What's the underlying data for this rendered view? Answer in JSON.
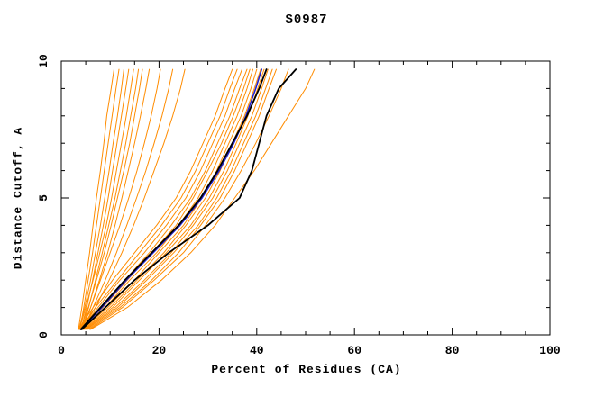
{
  "chart_data": {
    "type": "line",
    "title": "S0987",
    "xlabel": "Percent of Residues (CA)",
    "ylabel": "Distance Cutoff, A",
    "xlim": [
      0,
      100
    ],
    "ylim": [
      0,
      10
    ],
    "x_ticks": [
      0,
      20,
      40,
      60,
      80,
      100
    ],
    "x_tick_labels": [
      "0",
      "20",
      "40",
      "60",
      "80",
      "100"
    ],
    "y_ticks": [
      0,
      5,
      10
    ],
    "y_tick_labels": [
      "0",
      "5",
      "10"
    ],
    "x_minor_step": 5,
    "y_minor_step": 1,
    "grid": false,
    "legend": "none",
    "palette": {
      "orange": "#ff8c00",
      "black": "#000000",
      "blue": "#2222cc"
    },
    "y_samples": [
      0.2,
      1,
      2,
      3,
      4,
      5,
      6,
      7,
      8,
      9,
      9.7
    ],
    "series": [
      {
        "name": "m01",
        "color": "orange",
        "width": 1,
        "x": [
          3.5,
          4.2,
          5.0,
          5.8,
          6.5,
          7.2,
          8.0,
          8.7,
          9.3,
          10.2,
          10.8
        ]
      },
      {
        "name": "m02",
        "color": "orange",
        "width": 1,
        "x": [
          3.8,
          4.6,
          5.5,
          6.4,
          7.2,
          8.0,
          8.8,
          9.6,
          10.4,
          11.2,
          11.8
        ]
      },
      {
        "name": "m03",
        "color": "orange",
        "width": 1,
        "x": [
          3.6,
          4.8,
          6.0,
          7.0,
          8.0,
          8.9,
          9.8,
          10.6,
          11.5,
          12.3,
          12.8
        ]
      },
      {
        "name": "m04",
        "color": "orange",
        "width": 1,
        "x": [
          4.0,
          5.2,
          6.4,
          7.5,
          8.6,
          9.6,
          10.5,
          11.4,
          12.3,
          13.2,
          13.8
        ]
      },
      {
        "name": "m05",
        "color": "orange",
        "width": 1,
        "x": [
          3.7,
          5.0,
          6.5,
          7.9,
          9.2,
          10.3,
          11.3,
          12.3,
          13.3,
          14.2,
          14.8
        ]
      },
      {
        "name": "m06",
        "color": "orange",
        "width": 1,
        "x": [
          4.2,
          5.6,
          7.0,
          8.4,
          9.7,
          11.0,
          12.1,
          13.2,
          14.2,
          15.2,
          15.8
        ]
      },
      {
        "name": "m07",
        "color": "orange",
        "width": 1,
        "x": [
          3.9,
          5.5,
          7.2,
          8.8,
          10.2,
          11.5,
          12.8,
          14.0,
          15.0,
          16.0,
          16.6
        ]
      },
      {
        "name": "m08",
        "color": "orange",
        "width": 1,
        "x": [
          4.3,
          6.0,
          7.8,
          9.5,
          11.0,
          12.4,
          13.7,
          15.0,
          16.2,
          17.3,
          18.0
        ]
      },
      {
        "name": "m09",
        "color": "orange",
        "width": 1,
        "x": [
          4.0,
          6.0,
          8.0,
          10.0,
          12.0,
          13.8,
          15.5,
          17.0,
          18.4,
          19.6,
          20.3
        ]
      },
      {
        "name": "m10",
        "color": "orange",
        "width": 1,
        "x": [
          4.5,
          6.5,
          9.0,
          11.3,
          13.4,
          15.4,
          17.3,
          19.0,
          20.6,
          22.0,
          22.8
        ]
      },
      {
        "name": "m11",
        "color": "orange",
        "width": 1,
        "x": [
          4.2,
          7.0,
          9.8,
          12.4,
          14.8,
          17.0,
          19.0,
          21.0,
          22.8,
          24.4,
          25.3
        ]
      },
      {
        "name": "m12",
        "color": "orange",
        "width": 1,
        "x": [
          3.5,
          6.5,
          10.5,
          15.0,
          19.5,
          23.5,
          26.5,
          29.0,
          31.5,
          33.5,
          35.0
        ]
      },
      {
        "name": "m13",
        "color": "orange",
        "width": 1,
        "x": [
          3.8,
          7.0,
          11.5,
          16.0,
          20.5,
          24.5,
          27.5,
          30.0,
          32.5,
          34.5,
          36.0
        ]
      },
      {
        "name": "m14",
        "color": "orange",
        "width": 1,
        "x": [
          4.0,
          7.5,
          12.0,
          17.0,
          21.5,
          25.5,
          28.5,
          31.0,
          33.5,
          35.5,
          37.0
        ]
      },
      {
        "name": "m15",
        "color": "orange",
        "width": 1,
        "x": [
          4.2,
          8.0,
          13.0,
          18.0,
          22.5,
          26.5,
          29.5,
          32.0,
          34.5,
          36.5,
          38.0
        ]
      },
      {
        "name": "m16",
        "color": "orange",
        "width": 1,
        "x": [
          4.0,
          8.5,
          13.5,
          18.5,
          23.5,
          27.0,
          30.0,
          32.8,
          35.2,
          37.3,
          38.6
        ]
      },
      {
        "name": "m17",
        "color": "orange",
        "width": 1,
        "x": [
          4.5,
          9.0,
          14.0,
          19.5,
          24.0,
          28.0,
          31.0,
          33.5,
          36.0,
          38.0,
          39.2
        ]
      },
      {
        "name": "m18",
        "color": "orange",
        "width": 1,
        "x": [
          4.3,
          9.5,
          15.0,
          20.0,
          25.0,
          28.8,
          31.8,
          34.3,
          36.8,
          38.8,
          40.0
        ]
      },
      {
        "name": "m19",
        "color": "orange",
        "width": 1,
        "x": [
          4.6,
          10.0,
          15.5,
          21.0,
          25.5,
          29.5,
          32.5,
          35.0,
          37.5,
          39.5,
          40.8
        ]
      },
      {
        "name": "m20",
        "color": "orange",
        "width": 1,
        "x": [
          4.8,
          10.5,
          16.0,
          21.5,
          26.5,
          30.3,
          33.3,
          35.8,
          38.2,
          40.2,
          41.5
        ]
      },
      {
        "name": "m21",
        "color": "orange",
        "width": 1,
        "x": [
          5.0,
          11.0,
          17.0,
          22.5,
          27.0,
          31.0,
          34.0,
          36.5,
          39.0,
          41.0,
          42.3
        ]
      },
      {
        "name": "m22",
        "color": "orange",
        "width": 1,
        "x": [
          5.2,
          11.5,
          17.5,
          23.0,
          28.0,
          31.8,
          34.8,
          37.3,
          39.8,
          41.8,
          43.2
        ]
      },
      {
        "name": "m23",
        "color": "orange",
        "width": 1,
        "x": [
          5.5,
          12.0,
          18.5,
          24.0,
          28.5,
          32.5,
          35.5,
          38.0,
          40.5,
          42.5,
          44.0
        ]
      },
      {
        "name": "m24",
        "color": "orange",
        "width": 1,
        "x": [
          5.8,
          12.5,
          19.0,
          25.0,
          29.5,
          33.5,
          36.8,
          39.8,
          42.5,
          45.0,
          46.5
        ]
      },
      {
        "name": "m25",
        "color": "orange",
        "width": 1,
        "x": [
          6.0,
          13.5,
          20.5,
          26.5,
          31.5,
          35.5,
          39.5,
          43.0,
          46.5,
          50.0,
          51.8
        ]
      },
      {
        "name": "blue1",
        "color": "blue",
        "width": 1.6,
        "x": [
          4.1,
          8.3,
          13.3,
          18.8,
          24.3,
          28.8,
          32.3,
          35.3,
          37.8,
          39.8,
          41.0
        ]
      },
      {
        "name": "black1",
        "color": "black",
        "width": 1.8,
        "x": [
          4.0,
          8.0,
          13.0,
          18.5,
          24.0,
          28.5,
          32.0,
          35.0,
          38.0,
          40.5,
          42.0
        ]
      },
      {
        "name": "black2",
        "color": "black",
        "width": 1.8,
        "x": [
          4.2,
          9.0,
          15.0,
          22.0,
          30.0,
          36.5,
          39.0,
          40.5,
          42.0,
          44.5,
          48.0
        ]
      }
    ]
  }
}
